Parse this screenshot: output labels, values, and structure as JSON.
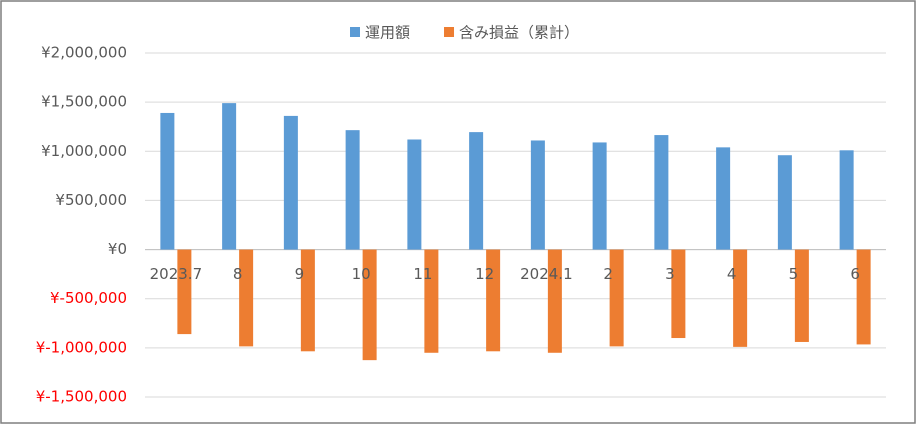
{
  "chart_data": {
    "type": "bar",
    "categories": [
      "2023.7",
      "8",
      "9",
      "10",
      "11",
      "12",
      "2024.1",
      "2",
      "3",
      "4",
      "5",
      "6"
    ],
    "series": [
      {
        "name": "運用額",
        "color": "#5b9bd5",
        "values": [
          1390000,
          1490000,
          1360000,
          1215000,
          1120000,
          1195000,
          1110000,
          1090000,
          1165000,
          1040000,
          960000,
          1010000
        ]
      },
      {
        "name": "含み損益（累計）",
        "color": "#ed7d31",
        "values": [
          -860000,
          -985000,
          -1035000,
          -1125000,
          -1050000,
          -1035000,
          -1050000,
          -985000,
          -900000,
          -990000,
          -940000,
          -965000
        ]
      }
    ],
    "ylim": [
      -1500000,
      2000000
    ],
    "yticks": [
      {
        "value": -1500000,
        "label": "¥-1,500,000"
      },
      {
        "value": -1000000,
        "label": "¥-1,000,000"
      },
      {
        "value": -500000,
        "label": "¥-500,000"
      },
      {
        "value": 0,
        "label": "¥0"
      },
      {
        "value": 500000,
        "label": "¥500,000"
      },
      {
        "value": 1000000,
        "label": "¥1,000,000"
      },
      {
        "value": 1500000,
        "label": "¥1,500,000"
      },
      {
        "value": 2000000,
        "label": "¥2,000,000"
      }
    ],
    "negative_tick_color": "#ff0000",
    "grid": true,
    "legend": "top"
  }
}
